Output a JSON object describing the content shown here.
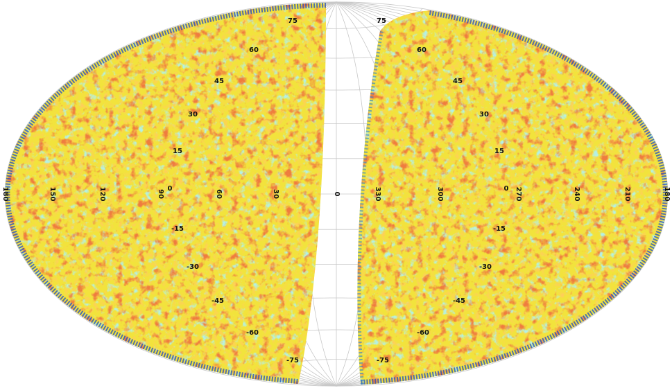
{
  "longitude_labels": [
    "180",
    "150",
    "120",
    "90",
    "60",
    "30",
    "0",
    "330",
    "300",
    "270",
    "240",
    "210",
    "180"
  ],
  "latitude_labels_left": [
    "75",
    "60",
    "45",
    "30",
    "15",
    "0",
    "-15",
    "-30",
    "-45",
    "-60",
    "-75"
  ],
  "latitude_labels_right": [
    "75",
    "60",
    "45",
    "30",
    "15",
    "0",
    "-15",
    "-30",
    "-45",
    "-60",
    "-75"
  ]
}
